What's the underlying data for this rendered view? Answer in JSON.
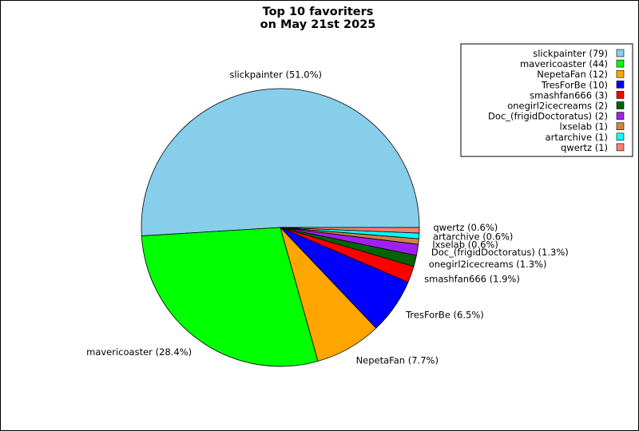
{
  "chart_data": {
    "type": "pie",
    "title": "Top 10 favoriters",
    "subtitle": "on May 21st 2025",
    "legend_position": "top-right",
    "slices": [
      {
        "name": "slickpainter",
        "value": 79,
        "percent_label": "slickpainter (51.0%)",
        "legend_label": "slickpainter (79)",
        "color": "#87ceeb"
      },
      {
        "name": "mavericoaster",
        "value": 44,
        "percent_label": "mavericoaster (28.4%)",
        "legend_label": "mavericoaster (44)",
        "color": "#00ff00"
      },
      {
        "name": "NepetaFan",
        "value": 12,
        "percent_label": "NepetaFan (7.7%)",
        "legend_label": "NepetaFan (12)",
        "color": "#ffa500"
      },
      {
        "name": "TresForBe",
        "value": 10,
        "percent_label": "TresForBe (6.5%)",
        "legend_label": "TresForBe (10)",
        "color": "#0000ff"
      },
      {
        "name": "smashfan666",
        "value": 3,
        "percent_label": "smashfan666 (1.9%)",
        "legend_label": "smashfan666 (3)",
        "color": "#ff0000"
      },
      {
        "name": "onegirl2icecreams",
        "value": 2,
        "percent_label": "onegirl2icecreams (1.3%)",
        "legend_label": "onegirl2icecreams (2)",
        "color": "#006400"
      },
      {
        "name": "Doc_(frigidDoctoratus)",
        "value": 2,
        "percent_label": "Doc_(frigidDoctoratus) (1.3%)",
        "legend_label": "Doc_(frigidDoctoratus) (2)",
        "color": "#a020f0"
      },
      {
        "name": "lxselab",
        "value": 1,
        "percent_label": "lxselab (0.6%)",
        "legend_label": "lxselab (1)",
        "color": "#cd853f"
      },
      {
        "name": "artarchive",
        "value": 1,
        "percent_label": "artarchive (0.6%)",
        "legend_label": "artarchive (1)",
        "color": "#00ffff"
      },
      {
        "name": "qwertz",
        "value": 1,
        "percent_label": "qwertz (0.6%)",
        "legend_label": "qwertz (1)",
        "color": "#fa8072"
      }
    ]
  }
}
